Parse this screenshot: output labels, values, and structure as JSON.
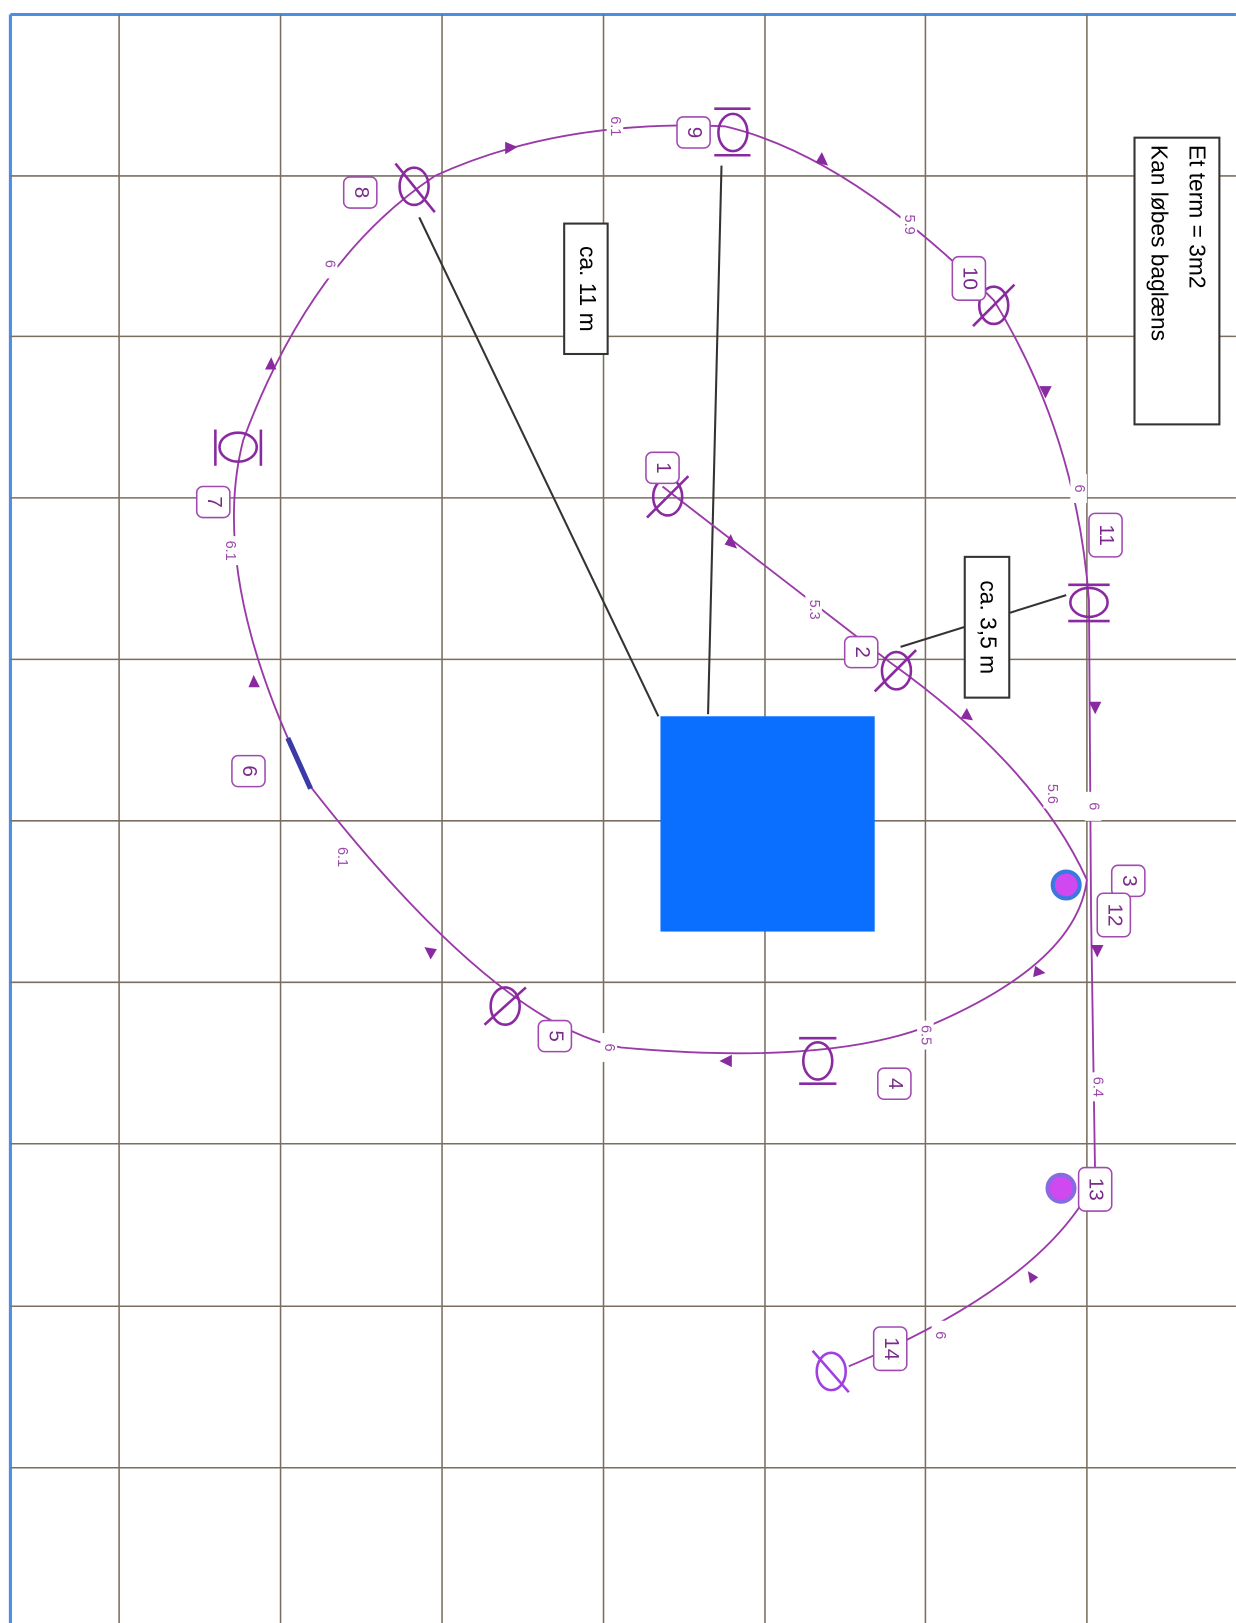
{
  "stations": [
    {
      "label": "1"
    },
    {
      "label": "2"
    },
    {
      "label": "3"
    },
    {
      "label": "4"
    },
    {
      "label": "5"
    },
    {
      "label": "6"
    },
    {
      "label": "7"
    },
    {
      "label": "8"
    },
    {
      "label": "9"
    },
    {
      "label": "10"
    },
    {
      "label": "11"
    },
    {
      "label": "12"
    },
    {
      "label": "13"
    },
    {
      "label": "14"
    }
  ],
  "distances": [
    "6.1",
    "5.9",
    "6",
    "6",
    "5.3",
    "5.6",
    "6",
    "6.1",
    "6.1",
    "6.5",
    "6.4",
    "6",
    "6"
  ],
  "measures": [
    "ca. 11 m",
    "ca. 3,5 m"
  ],
  "legend": [
    "Et term = 3m2",
    "Kan løbes baglæns"
  ]
}
